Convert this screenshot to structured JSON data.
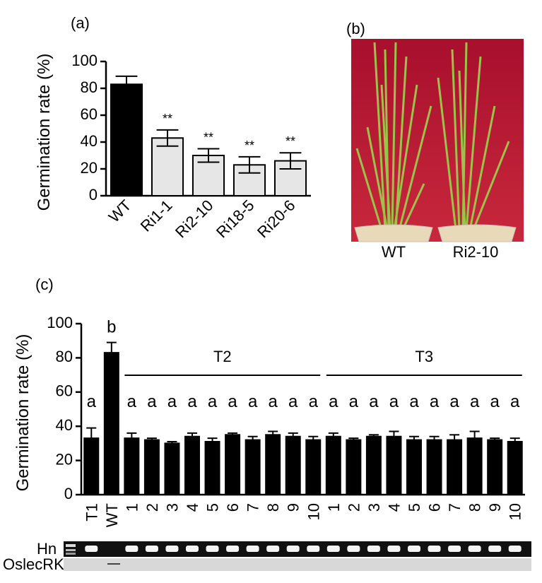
{
  "chart_data": [
    {
      "type": "bar",
      "panel_label": "(a)",
      "y_label": "Germination rate (%)",
      "categories": [
        "WT",
        "Ri1-1",
        "Ri2-10",
        "Ri18-5",
        "Ri20-6"
      ],
      "values": [
        83,
        43,
        30,
        23,
        26
      ],
      "errors": [
        6,
        6,
        5,
        6,
        6
      ],
      "colors": [
        "#000000",
        "#e6e6e6",
        "#e6e6e6",
        "#e6e6e6",
        "#e6e6e6"
      ],
      "annotations": [
        null,
        "**",
        "**",
        "**",
        "**"
      ],
      "ylim": [
        0,
        100
      ],
      "yticks": [
        0,
        20,
        40,
        60,
        80,
        100
      ]
    },
    {
      "type": "bar",
      "panel_label": "(c)",
      "y_label": "Germination rate (%)",
      "categories": [
        "T1",
        "WT",
        "1",
        "2",
        "3",
        "4",
        "5",
        "6",
        "7",
        "8",
        "9",
        "10",
        "1",
        "2",
        "3",
        "4",
        "5",
        "6",
        "7",
        "8",
        "9",
        "10"
      ],
      "group": [
        null,
        null,
        "T2",
        "T2",
        "T2",
        "T2",
        "T2",
        "T2",
        "T2",
        "T2",
        "T2",
        "T2",
        "T3",
        "T3",
        "T3",
        "T3",
        "T3",
        "T3",
        "T3",
        "T3",
        "T3",
        "T3"
      ],
      "values": [
        33,
        83,
        33,
        32,
        30,
        34,
        31,
        35,
        32,
        35,
        34,
        32,
        34,
        32,
        34,
        34,
        32,
        32,
        32,
        33,
        32,
        31
      ],
      "errors": [
        6,
        6,
        3,
        1,
        1,
        2,
        2,
        1,
        2,
        2,
        2,
        2,
        2,
        1,
        1,
        3,
        2,
        2,
        3,
        4,
        1,
        2
      ],
      "color": "#000000",
      "annotations": [
        "a",
        "b",
        "a",
        "a",
        "a",
        "a",
        "a",
        "a",
        "a",
        "a",
        "a",
        "a",
        "a",
        "a",
        "a",
        "a",
        "a",
        "a",
        "a",
        "a",
        "a",
        "a"
      ],
      "ylim": [
        0,
        100
      ],
      "yticks": [
        0,
        20,
        40,
        60,
        80,
        100
      ]
    }
  ],
  "panel_b": {
    "panel_label": "(b)",
    "labels": [
      "WT",
      "Ri2-10"
    ]
  },
  "gel": {
    "labels": [
      "Hn",
      "OslecRK"
    ]
  }
}
